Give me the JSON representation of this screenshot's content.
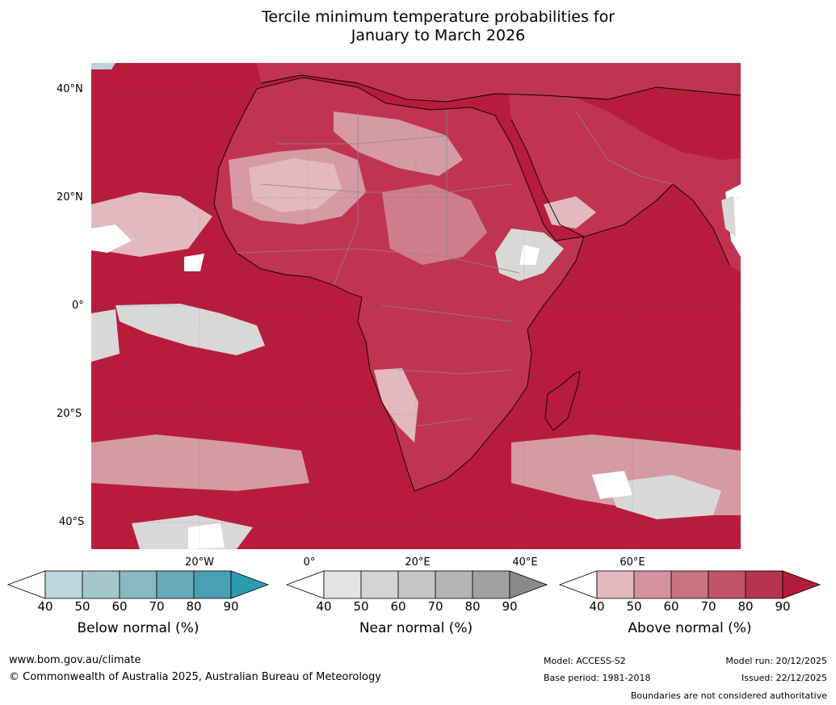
{
  "title": {
    "line1": "Tercile minimum temperature probabilities for",
    "line2": "January to March 2026"
  },
  "map": {
    "lat_labels": [
      "40°N",
      "20°N",
      "0°",
      "20°S",
      "40°S"
    ],
    "lon_labels": [
      "20°W",
      "0°",
      "20°E",
      "40°E",
      "60°E"
    ],
    "colors": {
      "ocean_base": "#b81c3b",
      "land_base": "#c7475f",
      "above_50": "#d59aa5",
      "above_40": "#e2b9c0",
      "near_normal": "#d8d8d8",
      "white": "#ffffff",
      "below": "#bcd3db"
    }
  },
  "colorbars": [
    {
      "title": "Below normal (%)",
      "ticks": [
        "40",
        "50",
        "60",
        "70",
        "80",
        "90"
      ],
      "colors": [
        "#ffffff",
        "#bcd4db",
        "#a5c6cd",
        "#88b7c2",
        "#6aaab8",
        "#499fb2",
        "#2b9bb2"
      ]
    },
    {
      "title": "Near normal (%)",
      "ticks": [
        "40",
        "50",
        "60",
        "70",
        "80",
        "90"
      ],
      "colors": [
        "#ffffff",
        "#e4e4e4",
        "#d4d4d4",
        "#c6c6c6",
        "#b4b4b4",
        "#a1a1a1",
        "#8a8a8a"
      ]
    },
    {
      "title": "Above normal (%)",
      "ticks": [
        "40",
        "50",
        "60",
        "70",
        "80",
        "90"
      ],
      "colors": [
        "#ffffff",
        "#e3b8bf",
        "#d4929c",
        "#c87380",
        "#bf5567",
        "#b7354c",
        "#b31b3a"
      ]
    }
  ],
  "footer": {
    "website": "www.bom.gov.au/climate",
    "copyright": "© Commonwealth of Australia 2025, Australian Bureau of Meteorology",
    "model": "Model: ACCESS-S2",
    "base_period": "Base period: 1981-2018",
    "model_run": "Model run: 20/12/2025",
    "issued": "Issued: 22/12/2025",
    "disclaimer": "Boundaries are not considered authoritative"
  }
}
